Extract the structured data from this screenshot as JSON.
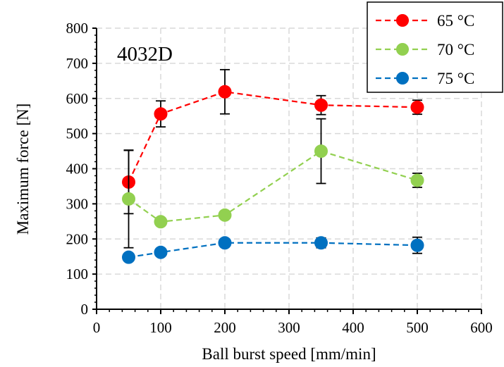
{
  "chart_data": {
    "type": "scatter",
    "title": "",
    "annotation": "4032D",
    "xlabel": "Ball burst speed [mm/min]",
    "ylabel": "Maximum force [N]",
    "xlim": [
      0,
      600
    ],
    "ylim": [
      0,
      800
    ],
    "xticks": [
      0,
      100,
      200,
      300,
      400,
      500,
      600
    ],
    "yticks": [
      0,
      100,
      200,
      300,
      400,
      500,
      600,
      700,
      800
    ],
    "grid": true,
    "legend_position": "top-right",
    "series": [
      {
        "name": "65 °C",
        "color": "#ff0000",
        "line_style": "dashed",
        "x": [
          50,
          100,
          200,
          350,
          500
        ],
        "y": [
          362,
          556,
          619,
          581,
          575
        ],
        "error": [
          90,
          37,
          63,
          27,
          20
        ]
      },
      {
        "name": "70 °C",
        "color": "#92d050",
        "line_style": "dashed",
        "x": [
          50,
          100,
          200,
          350,
          500
        ],
        "y": [
          314,
          249,
          268,
          450,
          367
        ],
        "error": [
          139,
          0,
          0,
          92,
          20
        ]
      },
      {
        "name": "75 °C",
        "color": "#0070c0",
        "line_style": "dashed",
        "x": [
          50,
          100,
          200,
          350,
          500
        ],
        "y": [
          148,
          162,
          189,
          189,
          182
        ],
        "error": [
          0,
          0,
          10,
          14,
          23
        ]
      }
    ]
  }
}
